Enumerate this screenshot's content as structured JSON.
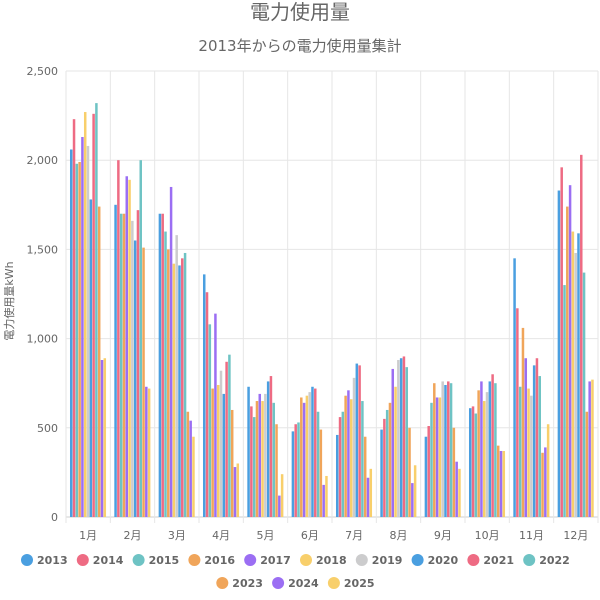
{
  "chart_data": {
    "type": "bar",
    "title": "電力使用量",
    "subtitle": "2013年からの電力使用量集計",
    "ylabel": "電力使用量kWh",
    "xlabel": "",
    "ylim": [
      0,
      2500
    ],
    "yticks": [
      0,
      500,
      1000,
      1500,
      2000,
      2500
    ],
    "ytick_labels": [
      "0",
      "500",
      "1,000",
      "1,500",
      "2,000",
      "2,500"
    ],
    "grid": true,
    "legend_position": "bottom",
    "categories": [
      "1月",
      "2月",
      "3月",
      "4月",
      "5月",
      "6月",
      "7月",
      "8月",
      "9月",
      "10月",
      "11月",
      "12月"
    ],
    "series": [
      {
        "name": "2013",
        "color": "#4a9fe0",
        "values": [
          2060,
          1750,
          1700,
          1360,
          730,
          480,
          460,
          490,
          450,
          610,
          1450,
          1830
        ]
      },
      {
        "name": "2014",
        "color": "#ee6b83",
        "values": [
          2230,
          2000,
          1700,
          1260,
          620,
          520,
          560,
          550,
          510,
          620,
          1170,
          1960
        ]
      },
      {
        "name": "2015",
        "color": "#6ec3c4",
        "values": [
          1980,
          1700,
          1600,
          1080,
          560,
          530,
          590,
          600,
          640,
          580,
          730,
          1300
        ]
      },
      {
        "name": "2016",
        "color": "#f0a55a",
        "values": [
          1990,
          1700,
          1500,
          720,
          650,
          670,
          680,
          640,
          750,
          710,
          1060,
          1740
        ]
      },
      {
        "name": "2017",
        "color": "#9b6ef3",
        "values": [
          2130,
          1910,
          1850,
          1140,
          690,
          640,
          710,
          830,
          670,
          760,
          890,
          1860
        ]
      },
      {
        "name": "2018",
        "color": "#f8cf6b",
        "values": [
          2270,
          1890,
          1420,
          740,
          650,
          680,
          660,
          730,
          670,
          650,
          720,
          1600
        ]
      },
      {
        "name": "2019",
        "color": "#cccccd",
        "values": [
          2080,
          1660,
          1580,
          820,
          690,
          700,
          780,
          880,
          760,
          700,
          680,
          1480
        ]
      },
      {
        "name": "2020",
        "color": "#4a9fe0",
        "values": [
          1780,
          1550,
          1410,
          690,
          760,
          730,
          860,
          890,
          740,
          760,
          850,
          1590
        ]
      },
      {
        "name": "2021",
        "color": "#ee6b83",
        "values": [
          2260,
          1720,
          1450,
          870,
          790,
          720,
          850,
          900,
          760,
          800,
          890,
          2030
        ]
      },
      {
        "name": "2022",
        "color": "#6ec3c4",
        "values": [
          2320,
          2000,
          1480,
          910,
          640,
          590,
          650,
          840,
          750,
          750,
          790,
          1370
        ]
      },
      {
        "name": "2023",
        "color": "#f0a55a",
        "values": [
          1740,
          1510,
          590,
          600,
          520,
          490,
          450,
          500,
          500,
          400,
          360,
          590
        ]
      },
      {
        "name": "2024",
        "color": "#9b6ef3",
        "values": [
          880,
          730,
          540,
          280,
          120,
          180,
          220,
          190,
          310,
          370,
          390,
          760
        ]
      },
      {
        "name": "2025",
        "color": "#f8cf6b",
        "values": [
          890,
          720,
          450,
          300,
          240,
          230,
          270,
          290,
          270,
          370,
          520,
          770
        ]
      }
    ]
  }
}
